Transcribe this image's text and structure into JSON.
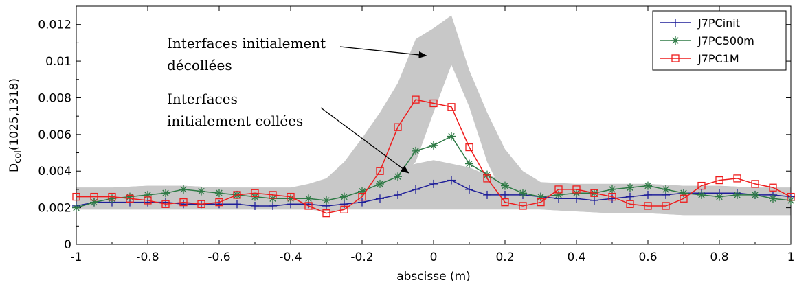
{
  "chart_data": {
    "type": "line",
    "title": "",
    "xlabel": "abscisse (m)",
    "ylabel_main": "D",
    "ylabel_sub": "col",
    "ylabel_tail": "(1025,1318)",
    "xlim": [
      -1,
      1
    ],
    "ylim": [
      0,
      0.013
    ],
    "xticks": [
      -1,
      -0.8,
      -0.6,
      -0.4,
      -0.2,
      0,
      0.2,
      0.4,
      0.6,
      0.8,
      1
    ],
    "xtick_labels": [
      "-1",
      "-0.8",
      "-0.6",
      "-0.4",
      "-0.2",
      "0",
      "0.2",
      "0.4",
      "0.6",
      "0.8",
      "1"
    ],
    "yticks": [
      0,
      0.002,
      0.004,
      0.006,
      0.008,
      0.01,
      0.012
    ],
    "ytick_labels": [
      "0",
      "0.002",
      "0.004",
      "0.006",
      "0.008",
      "0.01",
      "0.012"
    ],
    "grid": false,
    "legend_position": "top-right",
    "band": {
      "color": "#c8c8c8",
      "x": [
        -1,
        -0.9,
        -0.8,
        -0.7,
        -0.6,
        -0.5,
        -0.4,
        -0.35,
        -0.3,
        -0.25,
        -0.2,
        -0.15,
        -0.1,
        -0.05,
        0,
        0.05,
        0.1,
        0.15,
        0.2,
        0.25,
        0.3,
        0.4,
        0.5,
        0.6,
        0.7,
        0.8,
        0.9,
        1
      ],
      "upper": [
        0.0031,
        0.0031,
        0.0032,
        0.0032,
        0.0031,
        0.0031,
        0.0031,
        0.0033,
        0.0036,
        0.0045,
        0.0058,
        0.0072,
        0.0088,
        0.0112,
        0.0118,
        0.0125,
        0.0095,
        0.0072,
        0.0052,
        0.004,
        0.0034,
        0.0033,
        0.0033,
        0.0033,
        0.0032,
        0.0032,
        0.0031,
        0.0031
      ],
      "lower": [
        0.0019,
        0.0019,
        0.0019,
        0.0019,
        0.0019,
        0.0019,
        0.0019,
        0.0019,
        0.0018,
        0.0019,
        0.002,
        0.0025,
        0.0035,
        0.0045,
        0.0072,
        0.0098,
        0.0075,
        0.0045,
        0.0025,
        0.002,
        0.0019,
        0.0018,
        0.0017,
        0.0017,
        0.0016,
        0.0016,
        0.0016,
        0.0016
      ],
      "lower_band_upper": [
        0.0031,
        0.0031,
        0.0032,
        0.0032,
        0.0031,
        0.0031,
        0.0031,
        0.0032,
        0.0032,
        0.0033,
        0.0035,
        0.0038,
        0.0041,
        0.0044,
        0.0046,
        0.0044,
        0.0042,
        0.0038,
        0.0035,
        0.0033,
        0.0032,
        0.0033,
        0.0033,
        0.0033,
        0.0032,
        0.0032,
        0.0031,
        0.0031
      ]
    },
    "x": [
      -1,
      -0.95,
      -0.9,
      -0.85,
      -0.8,
      -0.75,
      -0.7,
      -0.65,
      -0.6,
      -0.55,
      -0.5,
      -0.45,
      -0.4,
      -0.35,
      -0.3,
      -0.25,
      -0.2,
      -0.15,
      -0.1,
      -0.05,
      0,
      0.05,
      0.1,
      0.15,
      0.2,
      0.25,
      0.3,
      0.35,
      0.4,
      0.45,
      0.5,
      0.55,
      0.6,
      0.65,
      0.7,
      0.75,
      0.8,
      0.85,
      0.9,
      0.95,
      1
    ],
    "series": [
      {
        "name": "J7PCinit",
        "color": "#1f1f99",
        "marker": "plus",
        "values": [
          0.0021,
          0.0023,
          0.0023,
          0.0023,
          0.0023,
          0.0023,
          0.0022,
          0.0022,
          0.0022,
          0.0022,
          0.0021,
          0.0021,
          0.0022,
          0.0022,
          0.0021,
          0.0022,
          0.0023,
          0.0025,
          0.0027,
          0.003,
          0.0033,
          0.0035,
          0.003,
          0.0027,
          0.0027,
          0.0027,
          0.0026,
          0.0025,
          0.0025,
          0.0024,
          0.0025,
          0.0026,
          0.0027,
          0.0027,
          0.0028,
          0.0028,
          0.0028,
          0.0028,
          0.0027,
          0.0027,
          0.0026
        ]
      },
      {
        "name": "J7PC500m",
        "color": "#2e7a45",
        "marker": "star",
        "values": [
          0.002,
          0.0023,
          0.0025,
          0.0026,
          0.0027,
          0.0028,
          0.003,
          0.0029,
          0.0028,
          0.0027,
          0.0026,
          0.0025,
          0.0025,
          0.0025,
          0.0024,
          0.0026,
          0.0029,
          0.0033,
          0.0037,
          0.0051,
          0.0054,
          0.0059,
          0.0044,
          0.0038,
          0.0032,
          0.0028,
          0.0026,
          0.0027,
          0.0028,
          0.0028,
          0.003,
          0.0031,
          0.0032,
          0.003,
          0.0028,
          0.0027,
          0.0026,
          0.0027,
          0.0027,
          0.0025,
          0.0024
        ]
      },
      {
        "name": "J7PC1M",
        "color": "#ee1c1c",
        "marker": "square",
        "values": [
          0.0026,
          0.0026,
          0.0026,
          0.0025,
          0.0024,
          0.0022,
          0.0023,
          0.0022,
          0.0023,
          0.0027,
          0.0028,
          0.0027,
          0.0026,
          0.0021,
          0.0017,
          0.0019,
          0.0026,
          0.004,
          0.0064,
          0.0079,
          0.0077,
          0.0075,
          0.0053,
          0.0036,
          0.0023,
          0.0021,
          0.0023,
          0.003,
          0.003,
          0.0028,
          0.0026,
          0.0022,
          0.0021,
          0.0021,
          0.0025,
          0.0032,
          0.0035,
          0.0036,
          0.0033,
          0.0031,
          0.0026
        ]
      }
    ],
    "annotations": [
      {
        "lines": [
          "Interfaces initialement",
          "décollées"
        ],
        "arrow_to": [
          -0.02,
          0.0103
        ]
      },
      {
        "lines": [
          "Interfaces",
          "initialement collées"
        ],
        "arrow_to": [
          -0.07,
          0.0039
        ]
      }
    ]
  }
}
